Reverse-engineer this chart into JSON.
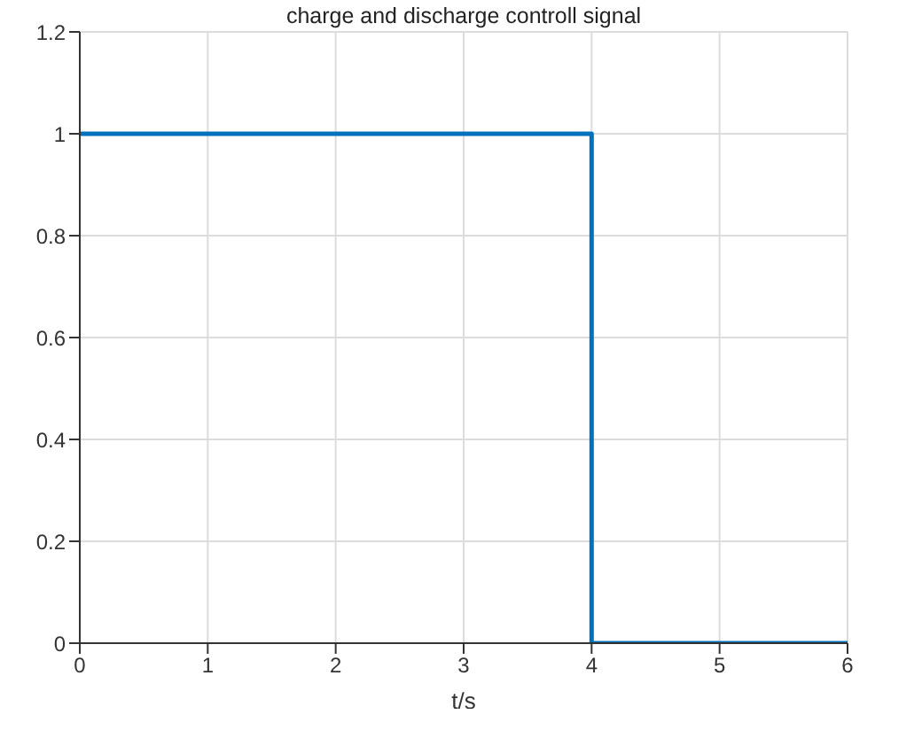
{
  "chart_data": {
    "type": "line",
    "title": "charge and discharge controll signal",
    "xlabel": "t/s",
    "x": [
      0,
      4,
      4,
      6
    ],
    "series": [
      {
        "color": "#0072bd",
        "values": [
          1,
          1,
          0,
          0
        ]
      }
    ],
    "xlim": [
      0,
      6
    ],
    "xticks": [
      0,
      1,
      2,
      3,
      4,
      5,
      6
    ],
    "ylim": [
      0,
      1.2
    ],
    "yticks": [
      0,
      0.2,
      0.4,
      0.6,
      0.8,
      1,
      1.2
    ],
    "grid": true
  }
}
